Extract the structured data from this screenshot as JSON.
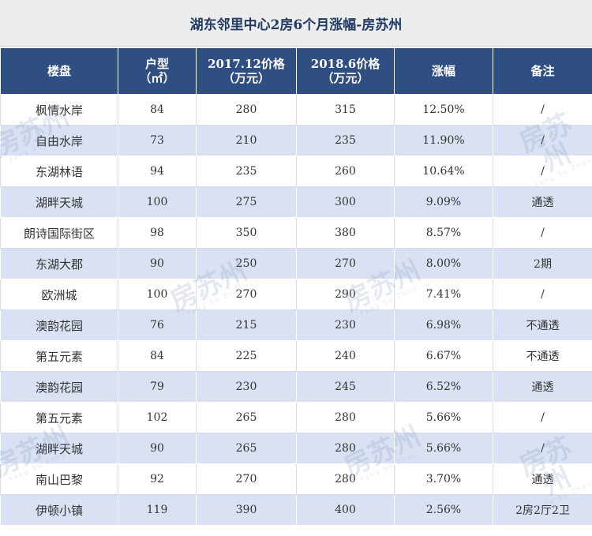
{
  "title": "湖东邻里中心2房6个月涨幅-房苏州",
  "watermark": {
    "main": "房苏州",
    "sub": "Fang Su Zhou"
  },
  "headers": [
    {
      "line1": "楼盘",
      "line2": ""
    },
    {
      "line1": "户型",
      "line2": "（㎡）"
    },
    {
      "line1": "2017.12价格",
      "line2": "（万元）"
    },
    {
      "line1": "2018.6价格",
      "line2": "（万元）"
    },
    {
      "line1": "涨幅",
      "line2": ""
    },
    {
      "line1": "备注",
      "line2": ""
    }
  ],
  "rows": [
    {
      "name": "枫情水岸",
      "area": "84",
      "p2017": "280",
      "p2018": "315",
      "rise": "12.50%",
      "note": "/"
    },
    {
      "name": "自由水岸",
      "area": "73",
      "p2017": "210",
      "p2018": "235",
      "rise": "11.90%",
      "note": "/"
    },
    {
      "name": "东湖林语",
      "area": "94",
      "p2017": "235",
      "p2018": "260",
      "rise": "10.64%",
      "note": "/"
    },
    {
      "name": "湖畔天城",
      "area": "100",
      "p2017": "275",
      "p2018": "300",
      "rise": "9.09%",
      "note": "通透"
    },
    {
      "name": "朗诗国际街区",
      "area": "98",
      "p2017": "350",
      "p2018": "380",
      "rise": "8.57%",
      "note": "/"
    },
    {
      "name": "东湖大郡",
      "area": "90",
      "p2017": "250",
      "p2018": "270",
      "rise": "8.00%",
      "note": "2期"
    },
    {
      "name": "欧洲城",
      "area": "100",
      "p2017": "270",
      "p2018": "290",
      "rise": "7.41%",
      "note": "/"
    },
    {
      "name": "澳韵花园",
      "area": "76",
      "p2017": "215",
      "p2018": "230",
      "rise": "6.98%",
      "note": "不通透"
    },
    {
      "name": "第五元素",
      "area": "84",
      "p2017": "225",
      "p2018": "240",
      "rise": "6.67%",
      "note": "不通透"
    },
    {
      "name": "澳韵花园",
      "area": "79",
      "p2017": "230",
      "p2018": "245",
      "rise": "6.52%",
      "note": "通透"
    },
    {
      "name": "第五元素",
      "area": "102",
      "p2017": "265",
      "p2018": "280",
      "rise": "5.66%",
      "note": "/"
    },
    {
      "name": "湖畔天城",
      "area": "90",
      "p2017": "265",
      "p2018": "280",
      "rise": "5.66%",
      "note": "/"
    },
    {
      "name": "南山巴黎",
      "area": "92",
      "p2017": "270",
      "p2018": "280",
      "rise": "3.70%",
      "note": "通透"
    },
    {
      "name": "伊顿小镇",
      "area": "119",
      "p2017": "390",
      "p2018": "400",
      "rise": "2.56%",
      "note": "2房2厅2卫"
    }
  ]
}
